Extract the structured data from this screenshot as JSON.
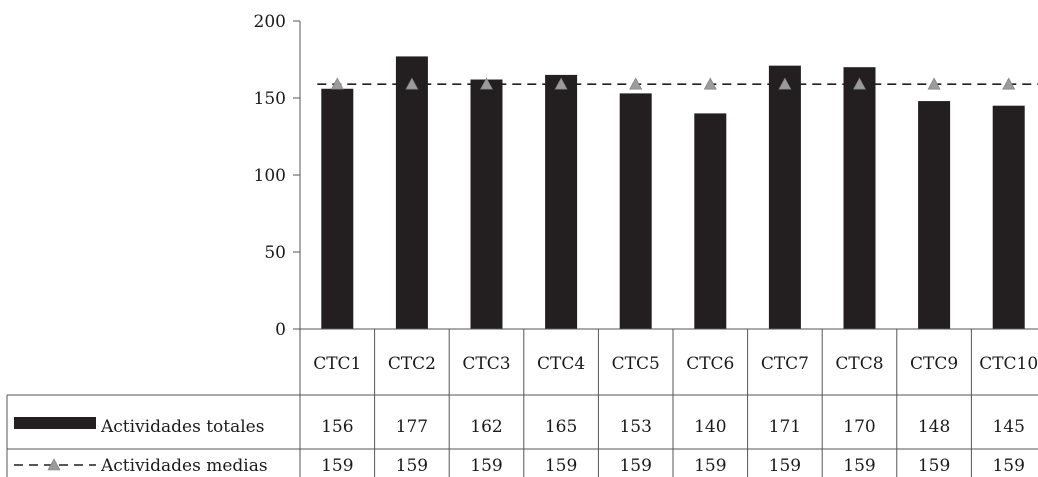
{
  "chart_data": {
    "type": "bar",
    "categories": [
      "CTC1",
      "CTC2",
      "CTC3",
      "CTC4",
      "CTC5",
      "CTC6",
      "CTC7",
      "CTC8",
      "CTC9",
      "CTC10"
    ],
    "series": [
      {
        "name": "Actividades totales",
        "type": "bar",
        "color": "#231f20",
        "values": [
          156,
          177,
          162,
          165,
          153,
          140,
          171,
          170,
          148,
          145
        ]
      },
      {
        "name": "Actividades medias",
        "type": "line",
        "line_style": "dashed",
        "marker": "triangle",
        "color": "#231f20",
        "marker_color": "#9b9b9b",
        "values": [
          159,
          159,
          159,
          159,
          159,
          159,
          159,
          159,
          159,
          159
        ]
      }
    ],
    "ylim": [
      0,
      200
    ],
    "yticks": [
      0,
      50,
      100,
      150,
      200
    ],
    "title": "",
    "xlabel": "",
    "ylabel": "",
    "grid": false,
    "legend": "data-table-left"
  }
}
